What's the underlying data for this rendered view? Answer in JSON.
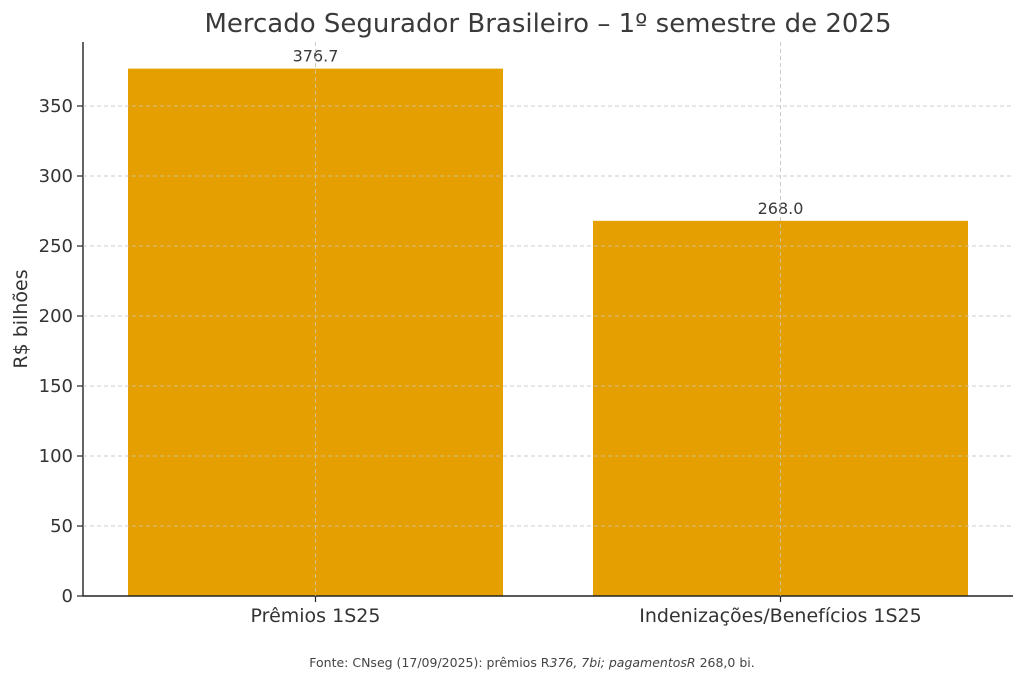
{
  "chart_data": {
    "type": "bar",
    "title": "Mercado Segurador Brasileiro – 1º semestre de 2025",
    "xlabel": "",
    "ylabel": "R$ bilhões",
    "categories": [
      "Prêmios 1S25",
      "Indenizações/Benefícios 1S25"
    ],
    "values": [
      376.7,
      268.0
    ],
    "data_labels": [
      "376.7",
      "268.0"
    ],
    "ylim": [
      0,
      396
    ],
    "yticks": [
      0,
      50,
      100,
      150,
      200,
      250,
      300,
      350
    ],
    "grid": true,
    "bar_color": "#E69F00"
  },
  "source": {
    "part1": "Fonte: CNseg (17/09/2025): prêmios R",
    "part2": "376, 7",
    "part3": "bi; pagamentosR",
    "part4": " 268,0 bi."
  }
}
